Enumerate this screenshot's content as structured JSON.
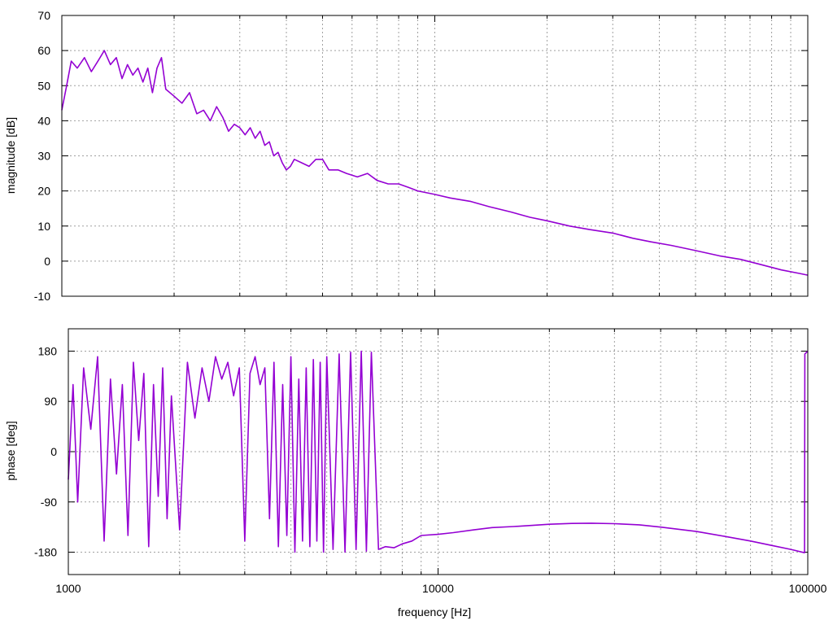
{
  "chart_data": [
    {
      "type": "line",
      "ylabel": "magnitude [dB]",
      "x_scale": "log",
      "xlim": [
        1000,
        100000
      ],
      "ylim": [
        -10,
        70
      ],
      "yticks": [
        "-10",
        "0",
        "10",
        "20",
        "30",
        "40",
        "50",
        "60",
        "70"
      ],
      "grid": true,
      "color": "#9400d3",
      "series": [
        {
          "points": [
            [
              1000,
              43
            ],
            [
              1030,
              50
            ],
            [
              1060,
              57
            ],
            [
              1100,
              55
            ],
            [
              1150,
              58
            ],
            [
              1200,
              54
            ],
            [
              1250,
              57
            ],
            [
              1300,
              60
            ],
            [
              1350,
              56
            ],
            [
              1400,
              58
            ],
            [
              1450,
              52
            ],
            [
              1500,
              56
            ],
            [
              1550,
              53
            ],
            [
              1600,
              55
            ],
            [
              1650,
              51
            ],
            [
              1700,
              55
            ],
            [
              1750,
              48
            ],
            [
              1800,
              55
            ],
            [
              1850,
              58
            ],
            [
              1900,
              49
            ],
            [
              2000,
              47
            ],
            [
              2100,
              45
            ],
            [
              2200,
              48
            ],
            [
              2300,
              42
            ],
            [
              2400,
              43
            ],
            [
              2500,
              40
            ],
            [
              2600,
              44
            ],
            [
              2700,
              41
            ],
            [
              2800,
              37
            ],
            [
              2900,
              39
            ],
            [
              3000,
              38
            ],
            [
              3100,
              36
            ],
            [
              3200,
              38
            ],
            [
              3300,
              35
            ],
            [
              3400,
              37
            ],
            [
              3500,
              33
            ],
            [
              3600,
              34
            ],
            [
              3700,
              30
            ],
            [
              3800,
              31
            ],
            [
              3900,
              28
            ],
            [
              4000,
              26
            ],
            [
              4100,
              27
            ],
            [
              4200,
              29
            ],
            [
              4400,
              28
            ],
            [
              4600,
              27
            ],
            [
              4800,
              29
            ],
            [
              5000,
              29
            ],
            [
              5200,
              26
            ],
            [
              5500,
              26
            ],
            [
              5800,
              25
            ],
            [
              6200,
              24
            ],
            [
              6600,
              25
            ],
            [
              7000,
              23
            ],
            [
              7500,
              22
            ],
            [
              8000,
              22
            ],
            [
              8500,
              21
            ],
            [
              9000,
              20
            ],
            [
              10000,
              19
            ],
            [
              11000,
              18
            ],
            [
              12500,
              17
            ],
            [
              14000,
              15.5
            ],
            [
              16000,
              14
            ],
            [
              18000,
              12.5
            ],
            [
              20000,
              11.5
            ],
            [
              23000,
              10
            ],
            [
              26000,
              9
            ],
            [
              30000,
              8
            ],
            [
              34000,
              6.5
            ],
            [
              38000,
              5.5
            ],
            [
              43000,
              4.5
            ],
            [
              50000,
              3
            ],
            [
              58000,
              1.5
            ],
            [
              66000,
              0.5
            ],
            [
              75000,
              -1
            ],
            [
              85000,
              -2.5
            ],
            [
              95000,
              -3.5
            ],
            [
              100000,
              -4
            ]
          ]
        }
      ]
    },
    {
      "type": "line",
      "xlabel": "frequency [Hz]",
      "ylabel": "phase [deg]",
      "x_scale": "log",
      "xlim": [
        1000,
        100000
      ],
      "ylim": [
        -220,
        220
      ],
      "xticks": [
        "1000",
        "10000",
        "100000"
      ],
      "yticks": [
        "180",
        "90",
        "0",
        "-90",
        "-180"
      ],
      "grid": true,
      "color": "#9400d3",
      "series": [
        {
          "points": [
            [
              1000,
              -50
            ],
            [
              1030,
              120
            ],
            [
              1060,
              -90
            ],
            [
              1100,
              150
            ],
            [
              1150,
              40
            ],
            [
              1200,
              170
            ],
            [
              1250,
              -160
            ],
            [
              1300,
              130
            ],
            [
              1350,
              -40
            ],
            [
              1400,
              120
            ],
            [
              1450,
              -150
            ],
            [
              1500,
              160
            ],
            [
              1550,
              20
            ],
            [
              1600,
              140
            ],
            [
              1650,
              -170
            ],
            [
              1700,
              120
            ],
            [
              1750,
              -80
            ],
            [
              1800,
              150
            ],
            [
              1850,
              -120
            ],
            [
              1900,
              100
            ],
            [
              2000,
              -140
            ],
            [
              2100,
              160
            ],
            [
              2200,
              60
            ],
            [
              2300,
              150
            ],
            [
              2400,
              90
            ],
            [
              2500,
              170
            ],
            [
              2600,
              130
            ],
            [
              2700,
              160
            ],
            [
              2800,
              100
            ],
            [
              2900,
              150
            ],
            [
              3000,
              -160
            ],
            [
              3100,
              140
            ],
            [
              3200,
              170
            ],
            [
              3300,
              120
            ],
            [
              3400,
              150
            ],
            [
              3500,
              -120
            ],
            [
              3600,
              160
            ],
            [
              3700,
              -170
            ],
            [
              3800,
              120
            ],
            [
              3900,
              -150
            ],
            [
              4000,
              170
            ],
            [
              4100,
              -180
            ],
            [
              4200,
              130
            ],
            [
              4300,
              -160
            ],
            [
              4400,
              150
            ],
            [
              4500,
              -170
            ],
            [
              4600,
              165
            ],
            [
              4700,
              -160
            ],
            [
              4800,
              160
            ],
            [
              4900,
              -180
            ],
            [
              5000,
              170
            ],
            [
              5200,
              -175
            ],
            [
              5400,
              175
            ],
            [
              5600,
              -180
            ],
            [
              5800,
              178
            ],
            [
              6000,
              -175
            ],
            [
              6200,
              180
            ],
            [
              6400,
              -178
            ],
            [
              6600,
              178
            ],
            [
              6900,
              -175
            ],
            [
              7200,
              -170
            ],
            [
              7600,
              -172
            ],
            [
              8000,
              -165
            ],
            [
              8500,
              -160
            ],
            [
              9000,
              -150
            ],
            [
              10000,
              -148
            ],
            [
              11000,
              -145
            ],
            [
              12500,
              -140
            ],
            [
              14000,
              -136
            ],
            [
              16000,
              -134
            ],
            [
              18000,
              -132
            ],
            [
              20000,
              -130
            ],
            [
              23000,
              -128.5
            ],
            [
              26000,
              -128
            ],
            [
              30000,
              -129
            ],
            [
              35000,
              -131
            ],
            [
              40000,
              -135
            ],
            [
              50000,
              -143
            ],
            [
              60000,
              -152
            ],
            [
              70000,
              -160
            ],
            [
              80000,
              -168
            ],
            [
              90000,
              -175
            ],
            [
              98000,
              -181
            ],
            [
              98200,
              175
            ],
            [
              100000,
              180
            ]
          ]
        }
      ]
    }
  ]
}
